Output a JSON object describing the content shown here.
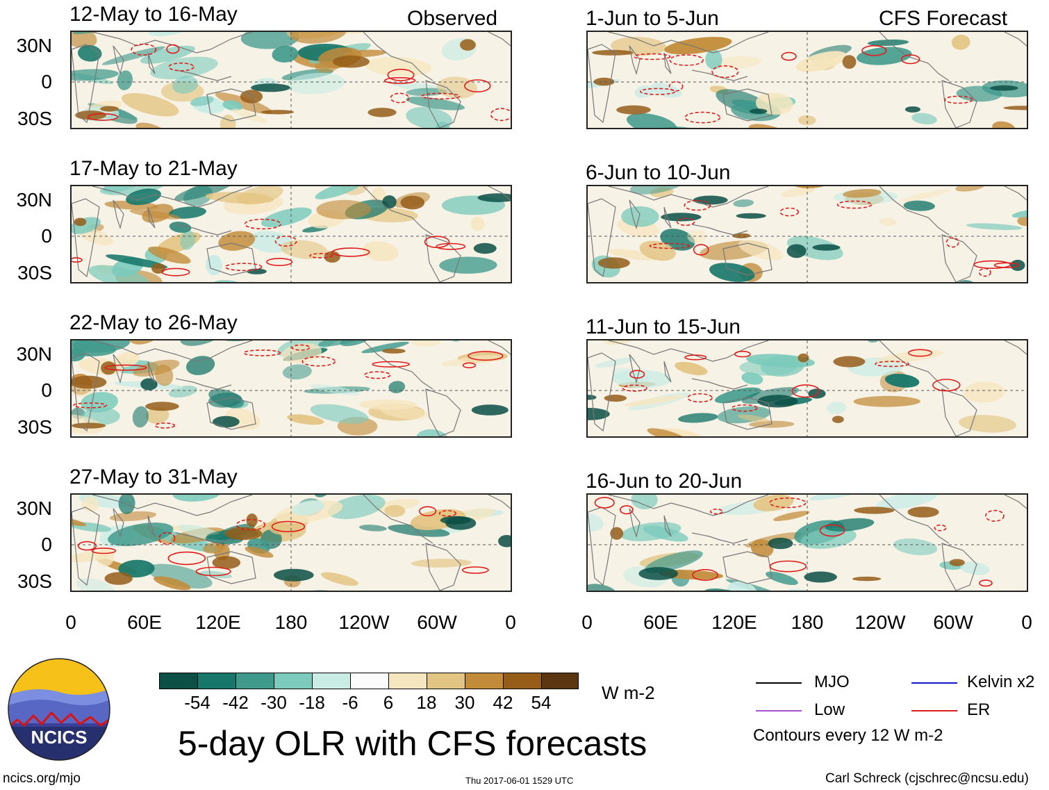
{
  "columns": {
    "left_title": "Observed",
    "right_title": "CFS Forecast"
  },
  "panels": [
    {
      "period": "12-May to 16-May",
      "source": "observed"
    },
    {
      "period": "17-May to 21-May",
      "source": "observed"
    },
    {
      "period": "22-May to 26-May",
      "source": "observed"
    },
    {
      "period": "27-May to 31-May",
      "source": "observed"
    },
    {
      "period": "1-Jun to 5-Jun",
      "source": "forecast"
    },
    {
      "period": "6-Jun to 10-Jun",
      "source": "forecast"
    },
    {
      "period": "11-Jun to 15-Jun",
      "source": "forecast"
    },
    {
      "period": "16-Jun to 20-Jun",
      "source": "forecast"
    }
  ],
  "axes": {
    "lat_labels": [
      "30N",
      "0",
      "30S"
    ],
    "lon_labels": [
      "0",
      "60E",
      "120E",
      "180",
      "120W",
      "60W",
      "0"
    ]
  },
  "colorbar": {
    "levels": [
      "-54",
      "-42",
      "-30",
      "-18",
      "-6",
      "6",
      "18",
      "30",
      "42",
      "54"
    ],
    "colors": [
      "#0b4f45",
      "#17776a",
      "#3f9a8c",
      "#7ccbbc",
      "#c9ece5",
      "#fbfbfb",
      "#f6e6bf",
      "#e3c583",
      "#c28b3a",
      "#955d17",
      "#5c3610"
    ],
    "units": "W m-2"
  },
  "legend": {
    "mjo": {
      "label": "MJO",
      "color": "#000000"
    },
    "kelvin": {
      "label": "Kelvin x2",
      "color": "#1414c8"
    },
    "low": {
      "label": "Low",
      "color": "#a64ccf"
    },
    "er": {
      "label": "ER",
      "color": "#e01b1b"
    },
    "note": "Contours every 12 W m-2"
  },
  "title": "5-day OLR with CFS forecasts",
  "footer": {
    "website": "ncics.org/mjo",
    "timestamp": "Thu 2017-06-01 1529 UTC",
    "author": "Carl Schreck (cjschrec@ncsu.edu)"
  },
  "logo": {
    "text": "NCICS"
  }
}
